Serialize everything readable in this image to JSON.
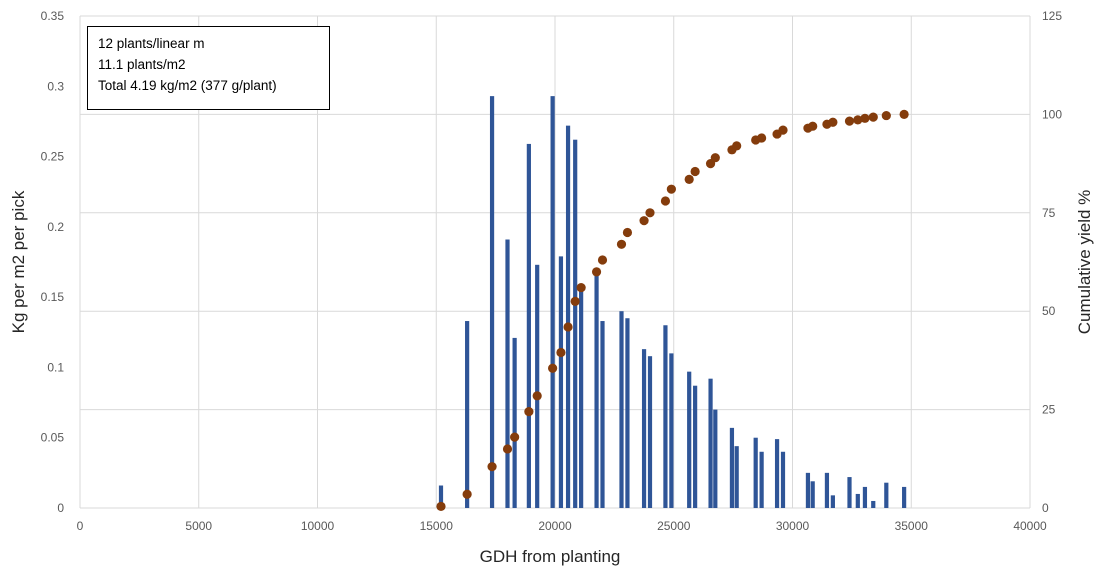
{
  "chart_data": {
    "type": "bar",
    "xlabel": "GDH from planting",
    "ylabel": "Kg per m2 per pick",
    "y2label": "Cumulative yield %",
    "xlim": [
      0,
      40000
    ],
    "ylim": [
      0,
      0.35
    ],
    "y2lim": [
      0,
      125
    ],
    "grid": true,
    "x_ticks": [
      "0",
      "5000",
      "10000",
      "15000",
      "20000",
      "25000",
      "30000",
      "35000",
      "40000"
    ],
    "y_ticks": [
      "0",
      "0.05",
      "0.1",
      "0.15",
      "0.2",
      "0.25",
      "0.3",
      "0.35"
    ],
    "y2_ticks": [
      "0",
      "25",
      "50",
      "75",
      "100",
      "125"
    ],
    "annotations": [
      "12 plants/linear m",
      "11.1 plants/m2",
      "Total 4.19 kg/m2 (377 g/plant)"
    ],
    "colors": {
      "bars": "#2f5597",
      "points": "#843c0c",
      "grid": "#d9d9d9"
    },
    "series": [
      {
        "type": "bar",
        "axis": "left",
        "x": [
          15200,
          16300,
          17350,
          18000,
          18300,
          18900,
          19250,
          19900,
          20250,
          20550,
          20850,
          21100,
          21750,
          22000,
          22800,
          23050,
          23750,
          24000,
          24650,
          24900,
          25650,
          25900,
          26550,
          26750,
          27450,
          27650,
          28450,
          28700,
          29350,
          29600,
          30650,
          30850,
          31450,
          31700,
          32400,
          32750,
          33050,
          33400,
          33950,
          34700
        ],
        "values": [
          0.016,
          0.133,
          0.293,
          0.191,
          0.121,
          0.259,
          0.173,
          0.293,
          0.179,
          0.272,
          0.262,
          0.157,
          0.167,
          0.133,
          0.14,
          0.135,
          0.113,
          0.108,
          0.13,
          0.11,
          0.097,
          0.087,
          0.092,
          0.07,
          0.057,
          0.044,
          0.05,
          0.04,
          0.049,
          0.04,
          0.025,
          0.019,
          0.025,
          0.009,
          0.022,
          0.01,
          0.015,
          0.005,
          0.018,
          0.015
        ]
      },
      {
        "type": "scatter",
        "axis": "right",
        "x": [
          15200,
          16300,
          17350,
          18000,
          18300,
          18900,
          19250,
          19900,
          20250,
          20550,
          20850,
          21100,
          21750,
          22000,
          22800,
          23050,
          23750,
          24000,
          24650,
          24900,
          25650,
          25900,
          26550,
          26750,
          27450,
          27650,
          28450,
          28700,
          29350,
          29600,
          30650,
          30850,
          31450,
          31700,
          32400,
          32750,
          33050,
          33400,
          33950,
          34700
        ],
        "values": [
          0.4,
          3.5,
          10.5,
          15,
          18,
          24.5,
          28.5,
          35.5,
          39.5,
          46,
          52.5,
          56,
          60,
          63,
          67,
          70,
          73,
          75,
          78,
          81,
          83.5,
          85.5,
          87.5,
          89,
          91,
          92,
          93.5,
          94,
          95,
          96,
          96.5,
          97,
          97.5,
          98,
          98.3,
          98.6,
          99,
          99.3,
          99.7,
          100
        ]
      }
    ]
  }
}
